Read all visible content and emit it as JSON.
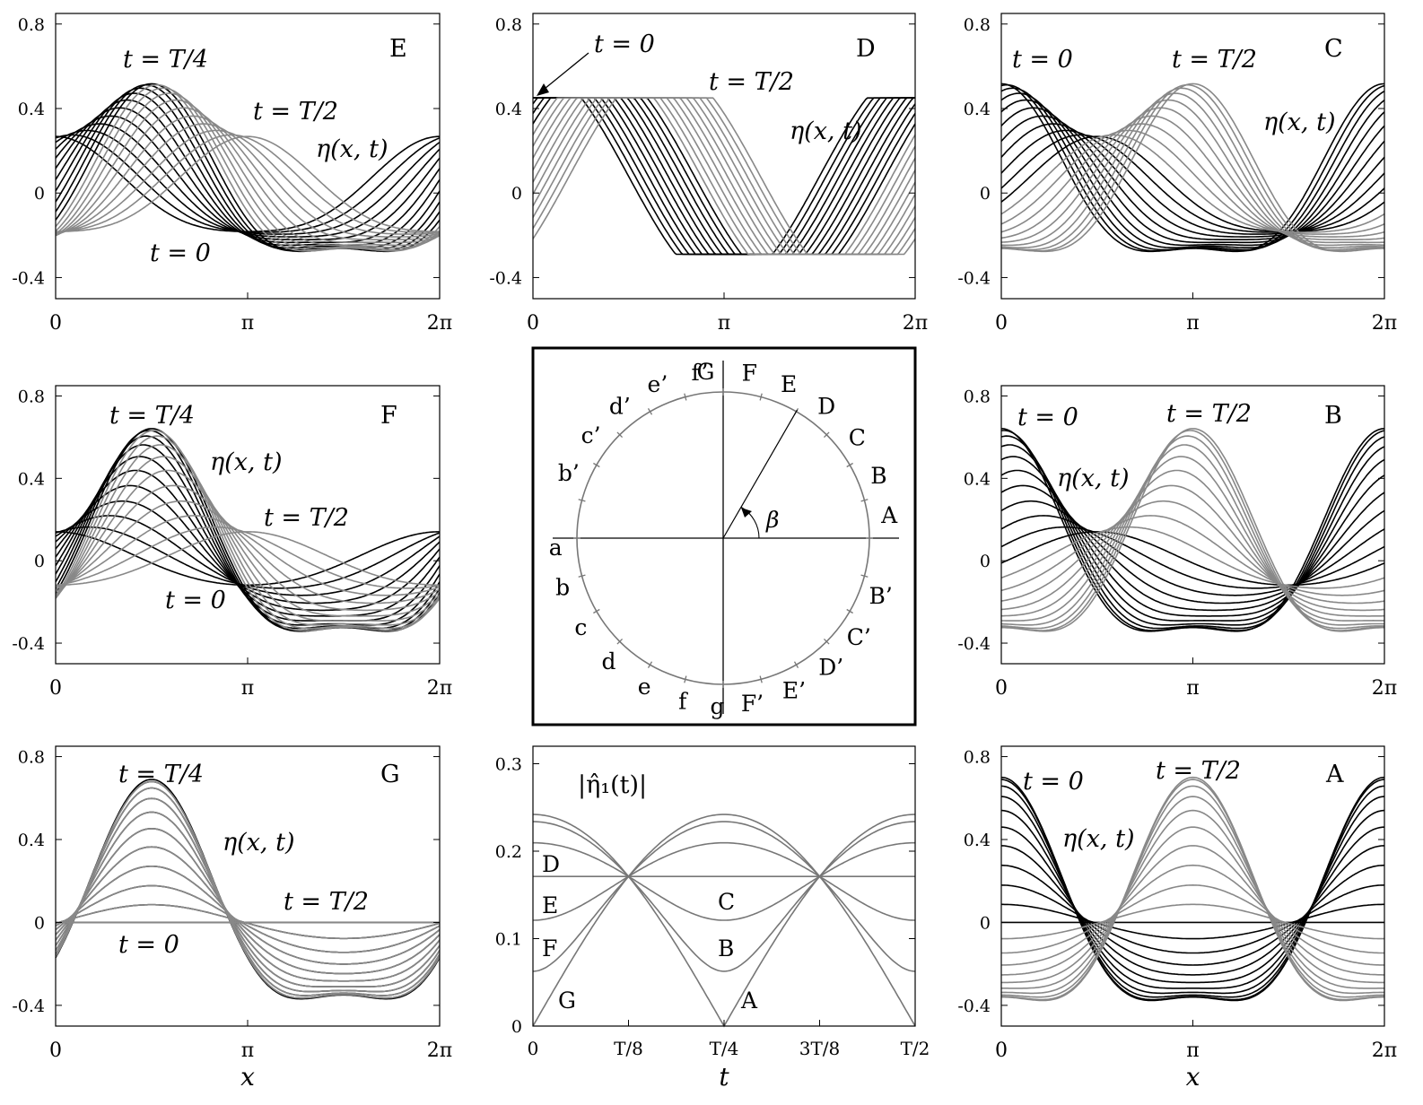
{
  "colors": {
    "early": "#000000",
    "late": "#888888",
    "circle": "#777777"
  },
  "panels": [
    {
      "id": "E",
      "letter": "E",
      "shape": "smooth",
      "amp": 0.45,
      "beta_deg": 60,
      "xticks": [
        "0",
        "π",
        "2π"
      ],
      "yticks": [
        "-0.4",
        "0",
        "0.4",
        "0.8"
      ],
      "xlabel": "",
      "labels": {
        "quarter": "t = T/4",
        "half": "t = T/2",
        "zero": "t = 0",
        "eta": "η(x, t)"
      }
    },
    {
      "id": "D",
      "letter": "D",
      "shape": "plateau",
      "amp": 0.37,
      "beta_deg": 45,
      "xticks": [
        "0",
        "π",
        "2π"
      ],
      "yticks": [
        "-0.4",
        "0",
        "0.4",
        "0.8"
      ],
      "xlabel": "",
      "labels": {
        "zero": "t = 0",
        "half": "t = T/2",
        "eta": "η(x, t)"
      }
    },
    {
      "id": "C",
      "letter": "C",
      "shape": "smooth",
      "amp": 0.45,
      "beta_deg": 30,
      "xticks": [
        "0",
        "π",
        "2π"
      ],
      "yticks": [
        "-0.4",
        "0",
        "0.4",
        "0.8"
      ],
      "xlabel": "",
      "labels": {
        "zero": "t = 0",
        "half": "t = T/2",
        "eta": "η(x, t)"
      }
    },
    {
      "id": "F",
      "letter": "F",
      "shape": "smooth",
      "amp": 0.5,
      "beta_deg": 75,
      "xticks": [
        "0",
        "π",
        "2π"
      ],
      "yticks": [
        "-0.4",
        "0",
        "0.4",
        "0.8"
      ],
      "xlabel": "",
      "labels": {
        "quarter": "t = T/4",
        "eta": "η(x, t)",
        "half": "t = T/2",
        "zero": "t = 0"
      }
    },
    {
      "id": "B",
      "letter": "B",
      "shape": "smooth",
      "amp": 0.5,
      "beta_deg": 15,
      "xticks": [
        "0",
        "π",
        "2π"
      ],
      "yticks": [
        "-0.4",
        "0",
        "0.4",
        "0.8"
      ],
      "xlabel": "",
      "labels": {
        "zero": "t = 0",
        "half": "t = T/2",
        "eta": "η(x, t)"
      }
    },
    {
      "id": "G",
      "letter": "G",
      "shape": "smooth",
      "amp": 0.52,
      "beta_deg": 90,
      "xticks": [
        "0",
        "π",
        "2π"
      ],
      "yticks": [
        "-0.4",
        "0",
        "0.4",
        "0.8"
      ],
      "xlabel": "x",
      "labels": {
        "quarter": "t = T/4",
        "eta": "η(x, t)",
        "half": "t = T/2",
        "zero": "t = 0"
      }
    },
    {
      "id": "A",
      "letter": "A",
      "shape": "smooth",
      "amp": 0.53,
      "beta_deg": 0,
      "xticks": [
        "0",
        "π",
        "2π"
      ],
      "yticks": [
        "-0.4",
        "0",
        "0.4",
        "0.8"
      ],
      "xlabel": "x",
      "labels": {
        "zero": "t = 0",
        "half": "t = T/2",
        "eta": "η(x, t)"
      }
    }
  ],
  "circle": {
    "labels_upper_right": [
      "A",
      "B",
      "C",
      "D",
      "E",
      "F",
      "G"
    ],
    "labels_lower_right": [
      "B’",
      "C’",
      "D’",
      "E’",
      "F’"
    ],
    "labels_upper_left": [
      "b’",
      "c’",
      "d’",
      "e’",
      "f’"
    ],
    "labels_lower_left": [
      "a",
      "b",
      "c",
      "d",
      "e",
      "f",
      "g"
    ],
    "angle_label": "β"
  },
  "chart_data": {
    "type": "line",
    "title": "|η̂₁(t)|",
    "xlabel": "t",
    "ylabel": "",
    "xticks": [
      "0",
      "T/8",
      "T/4",
      "3T/8",
      "T/2"
    ],
    "yticks": [
      "0",
      "0.1",
      "0.2",
      "0.3"
    ],
    "ylim": [
      0,
      0.32
    ],
    "amplitude": 0.242,
    "series": [
      {
        "name": "A",
        "beta_deg": 0
      },
      {
        "name": "B",
        "beta_deg": 15
      },
      {
        "name": "C",
        "beta_deg": 30
      },
      {
        "name": "D",
        "beta_deg": 45
      },
      {
        "name": "E",
        "beta_deg": 60
      },
      {
        "name": "F",
        "beta_deg": 75
      },
      {
        "name": "G",
        "beta_deg": 90
      }
    ]
  }
}
